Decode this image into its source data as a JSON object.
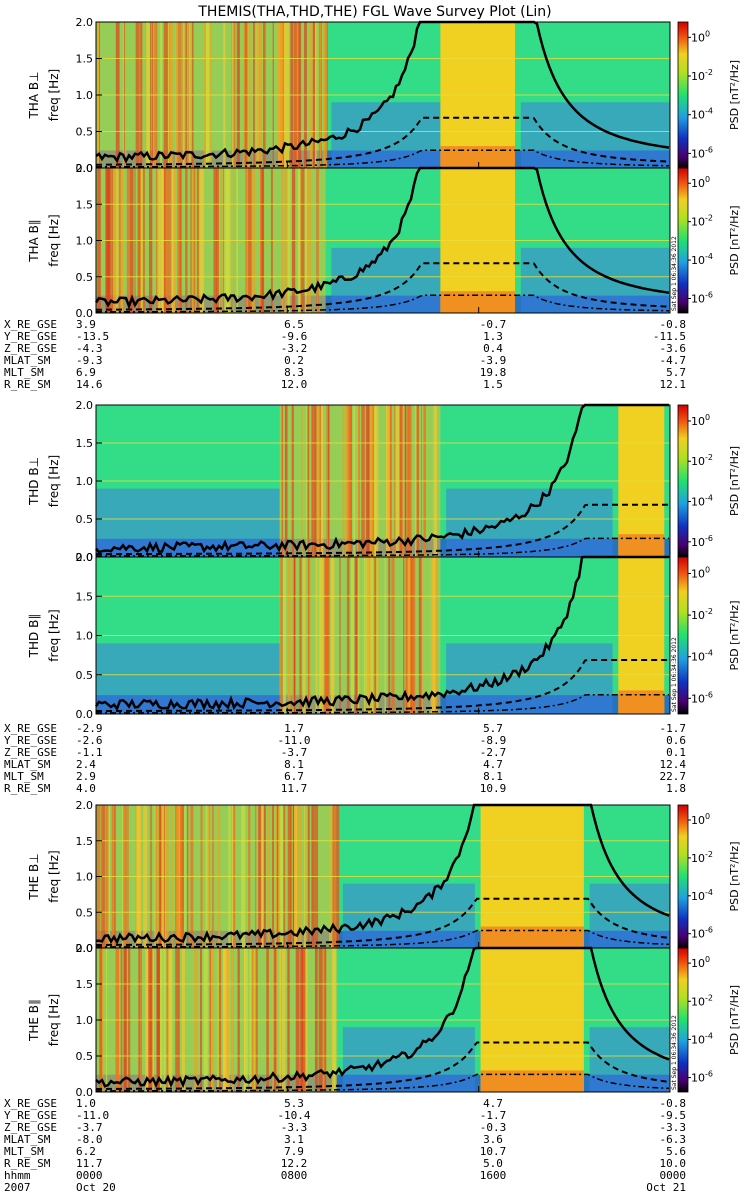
{
  "title": "THEMIS(THA,THD,THE) FGL Wave Survey Plot (Lin)",
  "chart_data": {
    "type": "heatmap",
    "x_labels": [
      "0000",
      "0800",
      "1600",
      "0000"
    ],
    "x_dates": [
      "2007",
      "Oct 20",
      "",
      "Oct 21"
    ],
    "x_row_label": "hhmm",
    "y_ticks": [
      "0.0",
      "0.5",
      "1.0",
      "1.5",
      "2.0"
    ],
    "ylim": [
      0,
      2
    ],
    "colorbar": {
      "label": "PSD [nT²/Hz]",
      "tick_mantissa": [
        "10",
        "10",
        "10",
        "10"
      ],
      "tick_exponents": [
        "-6",
        "-4",
        "-2",
        "0"
      ]
    },
    "date_stamp": "Sat Sep  1 06:34:36 2012",
    "panels": [
      {
        "name": "THA B⊥",
        "ylabel": "freq [Hz]"
      },
      {
        "name": "THA B∥",
        "ylabel": "freq [Hz]"
      },
      {
        "name": "THD B⊥",
        "ylabel": "freq [Hz]"
      },
      {
        "name": "THD B∥",
        "ylabel": "freq [Hz]"
      },
      {
        "name": "THE B⊥",
        "ylabel": "freq [Hz]"
      },
      {
        "name": "THE B∥",
        "ylabel": "freq [Hz]"
      }
    ],
    "ephemeris": [
      {
        "probe": "THA",
        "rows": [
          {
            "label": "X_RE_GSE",
            "values": [
              "3.9",
              "6.5",
              "-0.7",
              "-0.8"
            ]
          },
          {
            "label": "Y_RE_GSE",
            "values": [
              "-13.5",
              "-9.6",
              "1.3",
              "-11.5"
            ]
          },
          {
            "label": "Z_RE_GSE",
            "values": [
              "-4.3",
              "-3.2",
              "0.4",
              "-3.6"
            ]
          },
          {
            "label": "MLAT_SM",
            "values": [
              "-9.3",
              "0.2",
              "-3.9",
              "-4.7"
            ]
          },
          {
            "label": "MLT_SM",
            "values": [
              "6.9",
              "8.3",
              "19.8",
              "5.7"
            ]
          },
          {
            "label": "R_RE_SM",
            "values": [
              "14.6",
              "12.0",
              "1.5",
              "12.1"
            ]
          }
        ]
      },
      {
        "probe": "THD",
        "rows": [
          {
            "label": "X_RE_GSE",
            "values": [
              "-2.9",
              "1.7",
              "5.7",
              "-1.7"
            ]
          },
          {
            "label": "Y_RE_GSE",
            "values": [
              "-2.6",
              "-11.0",
              "-8.9",
              "0.6"
            ]
          },
          {
            "label": "Z_RE_GSE",
            "values": [
              "-1.1",
              "-3.7",
              "-2.7",
              "0.1"
            ]
          },
          {
            "label": "MLAT_SM",
            "values": [
              "2.4",
              "8.1",
              "4.7",
              "12.4"
            ]
          },
          {
            "label": "MLT_SM",
            "values": [
              "2.9",
              "6.7",
              "8.1",
              "22.7"
            ]
          },
          {
            "label": "R_RE_SM",
            "values": [
              "4.0",
              "11.7",
              "10.9",
              "1.8"
            ]
          }
        ]
      },
      {
        "probe": "THE",
        "rows": [
          {
            "label": "X_RE_GSE",
            "values": [
              "1.0",
              "5.3",
              "4.7",
              "-0.8"
            ]
          },
          {
            "label": "Y_RE_GSE",
            "values": [
              "-11.0",
              "-10.4",
              "-1.7",
              "-9.5"
            ]
          },
          {
            "label": "Z_RE_GSE",
            "values": [
              "-3.7",
              "-3.3",
              "-0.3",
              "-3.3"
            ]
          },
          {
            "label": "MLAT_SM",
            "values": [
              "-8.0",
              "3.1",
              "3.6",
              "-6.3"
            ]
          },
          {
            "label": "MLT_SM",
            "values": [
              "6.2",
              "7.9",
              "10.7",
              "5.6"
            ]
          },
          {
            "label": "R_RE_SM",
            "values": [
              "11.7",
              "12.2",
              "5.0",
              "10.0"
            ]
          }
        ]
      }
    ],
    "colors": {
      "spectrogram_background": "#33dd88",
      "high_power": "#e04020",
      "low_power": "#2050d0",
      "gyro_curve": "#000000"
    }
  }
}
